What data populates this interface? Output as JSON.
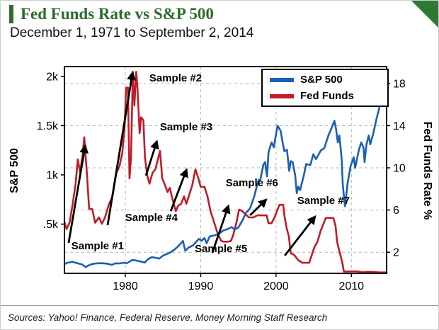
{
  "header": {
    "title": "Fed Funds Rate vs S&P 500",
    "subtitle": "December 1, 1971 to September 2, 2014",
    "accent_color": "#2e6b2e"
  },
  "footer": {
    "sources": "Sources: Yahoo! Finance, Federal Reserve, Money Morning Staff Research"
  },
  "chart_data": {
    "type": "line",
    "title": "Fed Funds Rate vs S&P 500",
    "subtitle": "December 1, 1971 to September 2, 2014",
    "grid": true,
    "legend_position": "top-right-inside",
    "x_axis": {
      "min": 1971.92,
      "max": 2014.67,
      "ticks": [
        {
          "value": 1980,
          "label": "1980"
        },
        {
          "value": 1990,
          "label": "1990"
        },
        {
          "value": 2000,
          "label": "2000"
        },
        {
          "value": 2010,
          "label": "2010"
        }
      ]
    },
    "left_axis": {
      "label": "S&P 500",
      "min": 0,
      "max": 2100,
      "ticks": [
        {
          "value": 2000,
          "label": "2k"
        },
        {
          "value": 1500,
          "label": "1.5k"
        },
        {
          "value": 1000,
          "label": "1k"
        },
        {
          "value": 500,
          "label": ".5k"
        }
      ]
    },
    "right_axis": {
      "label": "Fed Funds Rate %",
      "min": 0,
      "max": 19.6,
      "ticks": [
        {
          "value": 18,
          "label": "18"
        },
        {
          "value": 14,
          "label": "14"
        },
        {
          "value": 10,
          "label": "10"
        },
        {
          "value": 6,
          "label": "6"
        },
        {
          "value": 2,
          "label": "2"
        }
      ]
    },
    "series": [
      {
        "name": "Fed Funds",
        "color": "#c01c28",
        "axis": "right",
        "points": [
          [
            1971.92,
            4.9
          ],
          [
            1972.2,
            4.2
          ],
          [
            1972.6,
            4.8
          ],
          [
            1973.0,
            6.5
          ],
          [
            1973.4,
            8.5
          ],
          [
            1973.7,
            10.8
          ],
          [
            1974.0,
            9.6
          ],
          [
            1974.3,
            11.0
          ],
          [
            1974.55,
            12.9
          ],
          [
            1974.9,
            9.5
          ],
          [
            1975.2,
            6.1
          ],
          [
            1975.6,
            6.1
          ],
          [
            1976.0,
            4.8
          ],
          [
            1976.5,
            5.3
          ],
          [
            1976.9,
            4.7
          ],
          [
            1977.3,
            5.3
          ],
          [
            1977.8,
            6.5
          ],
          [
            1978.3,
            7.3
          ],
          [
            1978.8,
            9.5
          ],
          [
            1979.2,
            10.1
          ],
          [
            1979.6,
            11.4
          ],
          [
            1979.9,
            13.8
          ],
          [
            1980.1,
            17.6
          ],
          [
            1980.35,
            17.6
          ],
          [
            1980.55,
            9.0
          ],
          [
            1980.75,
            10.9
          ],
          [
            1981.0,
            19.1
          ],
          [
            1981.2,
            15.9
          ],
          [
            1981.45,
            19.1
          ],
          [
            1981.6,
            17.8
          ],
          [
            1981.9,
            13.3
          ],
          [
            1982.1,
            14.8
          ],
          [
            1982.4,
            14.5
          ],
          [
            1982.6,
            11.0
          ],
          [
            1982.9,
            9.3
          ],
          [
            1983.2,
            8.5
          ],
          [
            1983.6,
            9.5
          ],
          [
            1984.0,
            9.9
          ],
          [
            1984.6,
            11.6
          ],
          [
            1984.9,
            9.0
          ],
          [
            1985.2,
            8.5
          ],
          [
            1985.6,
            7.7
          ],
          [
            1985.9,
            8.1
          ],
          [
            1986.3,
            6.9
          ],
          [
            1986.7,
            5.9
          ],
          [
            1987.0,
            6.4
          ],
          [
            1987.4,
            6.6
          ],
          [
            1987.8,
            7.3
          ],
          [
            1988.1,
            6.6
          ],
          [
            1988.5,
            7.5
          ],
          [
            1988.9,
            8.4
          ],
          [
            1989.3,
            9.85
          ],
          [
            1989.7,
            9.0
          ],
          [
            1990.0,
            8.2
          ],
          [
            1990.5,
            8.2
          ],
          [
            1990.9,
            7.3
          ],
          [
            1991.3,
            5.9
          ],
          [
            1991.8,
            4.8
          ],
          [
            1992.2,
            3.9
          ],
          [
            1992.7,
            3.1
          ],
          [
            1993.0,
            3.0
          ],
          [
            1993.5,
            3.0
          ],
          [
            1994.0,
            3.05
          ],
          [
            1994.3,
            3.6
          ],
          [
            1994.7,
            4.7
          ],
          [
            1995.1,
            6.05
          ],
          [
            1995.5,
            5.9
          ],
          [
            1995.95,
            5.6
          ],
          [
            1996.4,
            5.3
          ],
          [
            1997.0,
            5.3
          ],
          [
            1997.5,
            5.5
          ],
          [
            1998.0,
            5.5
          ],
          [
            1998.75,
            5.5
          ],
          [
            1999.0,
            4.75
          ],
          [
            1999.4,
            4.75
          ],
          [
            1999.8,
            5.3
          ],
          [
            2000.1,
            5.85
          ],
          [
            2000.45,
            6.5
          ],
          [
            2000.95,
            6.5
          ],
          [
            2001.1,
            5.5
          ],
          [
            2001.4,
            4.3
          ],
          [
            2001.7,
            3.5
          ],
          [
            2001.95,
            1.9
          ],
          [
            2002.4,
            1.75
          ],
          [
            2002.95,
            1.25
          ],
          [
            2003.5,
            1.0
          ],
          [
            2004.4,
            1.0
          ],
          [
            2004.75,
            1.75
          ],
          [
            2005.1,
            2.5
          ],
          [
            2005.5,
            3.0
          ],
          [
            2005.9,
            4.0
          ],
          [
            2006.4,
            4.9
          ],
          [
            2006.6,
            5.25
          ],
          [
            2007.6,
            5.25
          ],
          [
            2007.9,
            4.5
          ],
          [
            2008.1,
            3.0
          ],
          [
            2008.4,
            2.1
          ],
          [
            2008.8,
            1.0
          ],
          [
            2009.0,
            0.16
          ],
          [
            2010.0,
            0.18
          ],
          [
            2010.7,
            0.19
          ],
          [
            2011.5,
            0.1
          ],
          [
            2012.2,
            0.15
          ],
          [
            2013.0,
            0.12
          ],
          [
            2013.8,
            0.09
          ],
          [
            2014.67,
            0.09
          ]
        ]
      },
      {
        "name": "S&P 500",
        "color": "#1a5fb4",
        "axis": "left",
        "points": [
          [
            1971.92,
            93
          ],
          [
            1972.3,
            107
          ],
          [
            1972.95,
            118
          ],
          [
            1973.4,
            108
          ],
          [
            1973.9,
            97
          ],
          [
            1974.2,
            93
          ],
          [
            1974.75,
            63
          ],
          [
            1975.1,
            80
          ],
          [
            1975.5,
            92
          ],
          [
            1976.0,
            100
          ],
          [
            1976.8,
            103
          ],
          [
            1977.5,
            99
          ],
          [
            1978.2,
            87
          ],
          [
            1978.7,
            102
          ],
          [
            1979.3,
            101
          ],
          [
            1979.8,
            108
          ],
          [
            1980.2,
            102
          ],
          [
            1980.9,
            135
          ],
          [
            1981.3,
            132
          ],
          [
            1981.9,
            122
          ],
          [
            1982.6,
            110
          ],
          [
            1982.95,
            140
          ],
          [
            1983.5,
            165
          ],
          [
            1984.1,
            157
          ],
          [
            1984.5,
            150
          ],
          [
            1985.0,
            180
          ],
          [
            1985.9,
            210
          ],
          [
            1986.5,
            240
          ],
          [
            1987.0,
            274
          ],
          [
            1987.65,
            329
          ],
          [
            1987.95,
            230
          ],
          [
            1988.4,
            262
          ],
          [
            1989.0,
            285
          ],
          [
            1989.75,
            350
          ],
          [
            1990.1,
            330
          ],
          [
            1990.5,
            358
          ],
          [
            1990.8,
            306
          ],
          [
            1991.2,
            375
          ],
          [
            1991.95,
            388
          ],
          [
            1992.5,
            408
          ],
          [
            1993.0,
            435
          ],
          [
            1993.6,
            450
          ],
          [
            1994.1,
            470
          ],
          [
            1994.5,
            445
          ],
          [
            1995.0,
            465
          ],
          [
            1995.6,
            545
          ],
          [
            1996.0,
            615
          ],
          [
            1996.4,
            645
          ],
          [
            1996.6,
            670
          ],
          [
            1997.1,
            780
          ],
          [
            1997.45,
            885
          ],
          [
            1997.7,
            950
          ],
          [
            1997.9,
            945
          ],
          [
            1998.3,
            1100
          ],
          [
            1998.55,
            1130
          ],
          [
            1998.8,
            985
          ],
          [
            1999.0,
            1230
          ],
          [
            1999.4,
            1330
          ],
          [
            1999.7,
            1280
          ],
          [
            2000.2,
            1500
          ],
          [
            2000.6,
            1450
          ],
          [
            2000.9,
            1320
          ],
          [
            2001.1,
            1240
          ],
          [
            2001.45,
            1255
          ],
          [
            2001.75,
            1040
          ],
          [
            2001.95,
            1140
          ],
          [
            2002.2,
            1130
          ],
          [
            2002.55,
            990
          ],
          [
            2002.75,
            815
          ],
          [
            2002.95,
            880
          ],
          [
            2003.2,
            845
          ],
          [
            2003.7,
            1000
          ],
          [
            2004.0,
            1110
          ],
          [
            2004.55,
            1100
          ],
          [
            2004.95,
            1210
          ],
          [
            2005.3,
            1160
          ],
          [
            2005.95,
            1250
          ],
          [
            2006.4,
            1270
          ],
          [
            2006.95,
            1400
          ],
          [
            2007.4,
            1480
          ],
          [
            2007.75,
            1550
          ],
          [
            2007.95,
            1470
          ],
          [
            2008.2,
            1330
          ],
          [
            2008.4,
            1400
          ],
          [
            2008.7,
            1165
          ],
          [
            2008.85,
            900
          ],
          [
            2009.15,
            680
          ],
          [
            2009.5,
            920
          ],
          [
            2009.9,
            1090
          ],
          [
            2010.3,
            1180
          ],
          [
            2010.5,
            1070
          ],
          [
            2010.95,
            1240
          ],
          [
            2011.3,
            1330
          ],
          [
            2011.6,
            1280
          ],
          [
            2011.75,
            1130
          ],
          [
            2012.0,
            1310
          ],
          [
            2012.3,
            1400
          ],
          [
            2012.5,
            1310
          ],
          [
            2012.9,
            1420
          ],
          [
            2013.3,
            1560
          ],
          [
            2013.7,
            1680
          ],
          [
            2014.0,
            1840
          ],
          [
            2014.3,
            1870
          ],
          [
            2014.67,
            2000
          ]
        ]
      }
    ],
    "legend": [
      "S&P 500",
      "Fed Funds"
    ],
    "annotations": [
      {
        "label": "Sample #1",
        "tx": 0.103,
        "ty": 0.884,
        "arrow": [
          0.013,
          0.853,
          0.064,
          0.387
        ]
      },
      {
        "label": "Sample #2",
        "tx": 0.345,
        "ty": 0.072,
        "arrow": [
          0.134,
          0.767,
          0.211,
          0.034
        ]
      },
      {
        "label": "Sample #3",
        "tx": 0.378,
        "ty": 0.308,
        "arrow": [
          0.253,
          0.527,
          0.286,
          0.366
        ]
      },
      {
        "label": "Sample #4",
        "tx": 0.27,
        "ty": 0.747,
        "arrow": [
          0.33,
          0.699,
          0.378,
          0.503
        ]
      },
      {
        "label": "Sample #5",
        "tx": 0.486,
        "ty": 0.897,
        "arrow": [
          0.459,
          0.901,
          0.508,
          0.678
        ]
      },
      {
        "label": "Sample #6",
        "tx": 0.582,
        "ty": 0.579,
        "arrow": [
          0.576,
          0.719,
          0.624,
          0.647
        ]
      },
      {
        "label": "Sample #7",
        "tx": 0.804,
        "ty": 0.664,
        "arrow": [
          0.684,
          0.914,
          0.776,
          0.729
        ]
      }
    ]
  }
}
